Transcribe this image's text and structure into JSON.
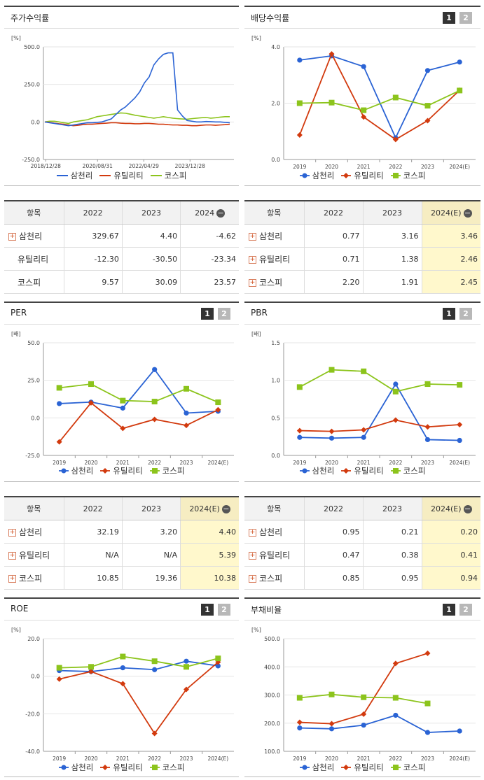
{
  "colors": {
    "samchully": "#2a63d4",
    "utility": "#d23a0e",
    "kospi": "#8cc41c"
  },
  "series_names": [
    "삼천리",
    "유틸리티",
    "코스피"
  ],
  "panels": {
    "stock_return": {
      "title": "주가수익률"
    },
    "dividend": {
      "title": "배당수익률",
      "page1": "1",
      "page2": "2"
    },
    "per": {
      "title": "PER",
      "page1": "1",
      "page2": "2"
    },
    "pbr": {
      "title": "PBR",
      "page1": "1",
      "page2": "2"
    },
    "roe": {
      "title": "ROE",
      "page1": "1",
      "page2": "2"
    },
    "debt": {
      "title": "부채비율",
      "page1": "1",
      "page2": "2"
    }
  },
  "tables": {
    "stock_return": {
      "headers": [
        "항목",
        "2022",
        "2023",
        "2024"
      ],
      "rows": [
        {
          "name": "삼천리",
          "values": [
            "329.67",
            "4.40",
            "-4.62"
          ]
        },
        {
          "name": "유틸리티",
          "values": [
            "-12.30",
            "-30.50",
            "-23.34"
          ]
        },
        {
          "name": "코스피",
          "values": [
            "9.57",
            "30.09",
            "23.57"
          ]
        }
      ]
    },
    "dividend": {
      "headers": [
        "항목",
        "2022",
        "2023",
        "2024(E)"
      ],
      "rows": [
        {
          "name": "삼천리",
          "values": [
            "0.77",
            "3.16",
            "3.46"
          ]
        },
        {
          "name": "유틸리티",
          "values": [
            "0.71",
            "1.38",
            "2.46"
          ]
        },
        {
          "name": "코스피",
          "values": [
            "2.20",
            "1.91",
            "2.45"
          ]
        }
      ]
    },
    "per": {
      "headers": [
        "항목",
        "2022",
        "2023",
        "2024(E)"
      ],
      "rows": [
        {
          "name": "삼천리",
          "values": [
            "32.19",
            "3.20",
            "4.40"
          ]
        },
        {
          "name": "유틸리티",
          "values": [
            "N/A",
            "N/A",
            "5.39"
          ]
        },
        {
          "name": "코스피",
          "values": [
            "10.85",
            "19.36",
            "10.38"
          ]
        }
      ]
    },
    "pbr": {
      "headers": [
        "항목",
        "2022",
        "2023",
        "2024(E)"
      ],
      "rows": [
        {
          "name": "삼천리",
          "values": [
            "0.95",
            "0.21",
            "0.20"
          ]
        },
        {
          "name": "유틸리티",
          "values": [
            "0.47",
            "0.38",
            "0.41"
          ]
        },
        {
          "name": "코스피",
          "values": [
            "0.85",
            "0.95",
            "0.94"
          ]
        }
      ]
    }
  },
  "chart_data": [
    {
      "id": "stock_return",
      "type": "line",
      "unit": "[%]",
      "ylim": [
        -250,
        500
      ],
      "yticks": [
        "500.0",
        "250.0",
        "0.0",
        "-250.0"
      ],
      "xticks": [
        "2018/12/28",
        "2020/08/31",
        "2022/04/29",
        "2023/12/28"
      ],
      "series": [
        {
          "name": "삼천리",
          "values": [
            0,
            -5,
            -10,
            -15,
            -20,
            -25,
            -20,
            -15,
            -10,
            -5,
            -5,
            -3,
            0,
            10,
            20,
            50,
            80,
            100,
            130,
            160,
            200,
            260,
            300,
            380,
            420,
            450,
            460,
            460,
            80,
            40,
            10,
            5,
            0,
            0,
            3,
            2,
            0,
            0,
            -3,
            -5
          ]
        },
        {
          "name": "유틸리티",
          "values": [
            0,
            -3,
            -8,
            -12,
            -15,
            -20,
            -25,
            -22,
            -18,
            -15,
            -15,
            -12,
            -10,
            -8,
            -5,
            -5,
            -8,
            -10,
            -10,
            -12,
            -12,
            -10,
            -10,
            -12,
            -15,
            -15,
            -18,
            -20,
            -20,
            -22,
            -22,
            -25,
            -25,
            -22,
            -20,
            -20,
            -22,
            -20,
            -18,
            -15
          ]
        },
        {
          "name": "코스피",
          "values": [
            0,
            5,
            5,
            0,
            -5,
            -10,
            0,
            5,
            10,
            15,
            25,
            35,
            40,
            45,
            50,
            55,
            60,
            58,
            52,
            45,
            40,
            35,
            30,
            25,
            30,
            35,
            30,
            25,
            22,
            20,
            18,
            22,
            25,
            28,
            30,
            25,
            28,
            32,
            35,
            35
          ]
        }
      ]
    },
    {
      "id": "dividend",
      "type": "line",
      "unit": "[%]",
      "ylim": [
        0,
        4
      ],
      "yticks": [
        "4.0",
        "2.0",
        "0.0"
      ],
      "categories": [
        "2019",
        "2020",
        "2021",
        "2022",
        "2023",
        "2024(E)"
      ],
      "series": [
        {
          "name": "삼천리",
          "values": [
            3.53,
            3.68,
            3.3,
            0.77,
            3.16,
            3.46
          ]
        },
        {
          "name": "유틸리티",
          "values": [
            0.87,
            3.75,
            1.51,
            0.71,
            1.38,
            2.46
          ]
        },
        {
          "name": "코스피",
          "values": [
            2.0,
            2.02,
            1.75,
            2.2,
            1.91,
            2.45
          ]
        }
      ]
    },
    {
      "id": "per",
      "type": "line",
      "unit": "[배]",
      "ylim": [
        -25,
        50
      ],
      "yticks": [
        "50.0",
        "25.0",
        "0.0",
        "-25.0"
      ],
      "categories": [
        "2019",
        "2020",
        "2021",
        "2022",
        "2023",
        "2024(E)"
      ],
      "series": [
        {
          "name": "삼천리",
          "values": [
            9.5,
            10.5,
            6.5,
            32.19,
            3.2,
            4.4
          ]
        },
        {
          "name": "유틸리티",
          "values": [
            -16,
            10,
            -7,
            -1,
            -5,
            5.39
          ]
        },
        {
          "name": "코스피",
          "values": [
            20,
            22.5,
            11.5,
            10.85,
            19.36,
            10.38
          ]
        }
      ]
    },
    {
      "id": "pbr",
      "type": "line",
      "unit": "[배]",
      "ylim": [
        0,
        1.5
      ],
      "yticks": [
        "1.5",
        "1.0",
        "0.5",
        "0.0"
      ],
      "categories": [
        "2019",
        "2020",
        "2021",
        "2022",
        "2023",
        "2024(E)"
      ],
      "series": [
        {
          "name": "삼천리",
          "values": [
            0.24,
            0.23,
            0.24,
            0.95,
            0.21,
            0.2
          ]
        },
        {
          "name": "유틸리티",
          "values": [
            0.33,
            0.32,
            0.34,
            0.47,
            0.38,
            0.41
          ]
        },
        {
          "name": "코스피",
          "values": [
            0.91,
            1.14,
            1.12,
            0.85,
            0.95,
            0.94
          ]
        }
      ]
    },
    {
      "id": "roe",
      "type": "line",
      "unit": "[%]",
      "ylim": [
        -40,
        20
      ],
      "yticks": [
        "20.0",
        "0.0",
        "-20.0",
        "-40.0"
      ],
      "categories": [
        "2019",
        "2020",
        "2021",
        "2022",
        "2023",
        "2024(E)"
      ],
      "series": [
        {
          "name": "삼천리",
          "values": [
            3,
            2.5,
            4.5,
            3.5,
            8,
            5.5
          ]
        },
        {
          "name": "유틸리티",
          "values": [
            -1.5,
            2.5,
            -4,
            -30.5,
            -7,
            7.5
          ]
        },
        {
          "name": "코스피",
          "values": [
            4.5,
            5,
            10.5,
            8,
            5,
            9.5
          ]
        }
      ]
    },
    {
      "id": "debt",
      "type": "line",
      "unit": "[%]",
      "ylim": [
        100,
        500
      ],
      "yticks": [
        "500.0",
        "400.0",
        "300.0",
        "200.0",
        "100.0"
      ],
      "categories": [
        "2019",
        "2020",
        "2021",
        "2022",
        "2023",
        "2024(E)"
      ],
      "series": [
        {
          "name": "삼천리",
          "values": [
            183,
            180,
            193,
            228,
            167,
            172
          ]
        },
        {
          "name": "유틸리티",
          "values": [
            203,
            198,
            232,
            412,
            448,
            null
          ]
        },
        {
          "name": "코스피",
          "values": [
            290,
            302,
            292,
            290,
            270,
            null
          ]
        }
      ]
    }
  ]
}
